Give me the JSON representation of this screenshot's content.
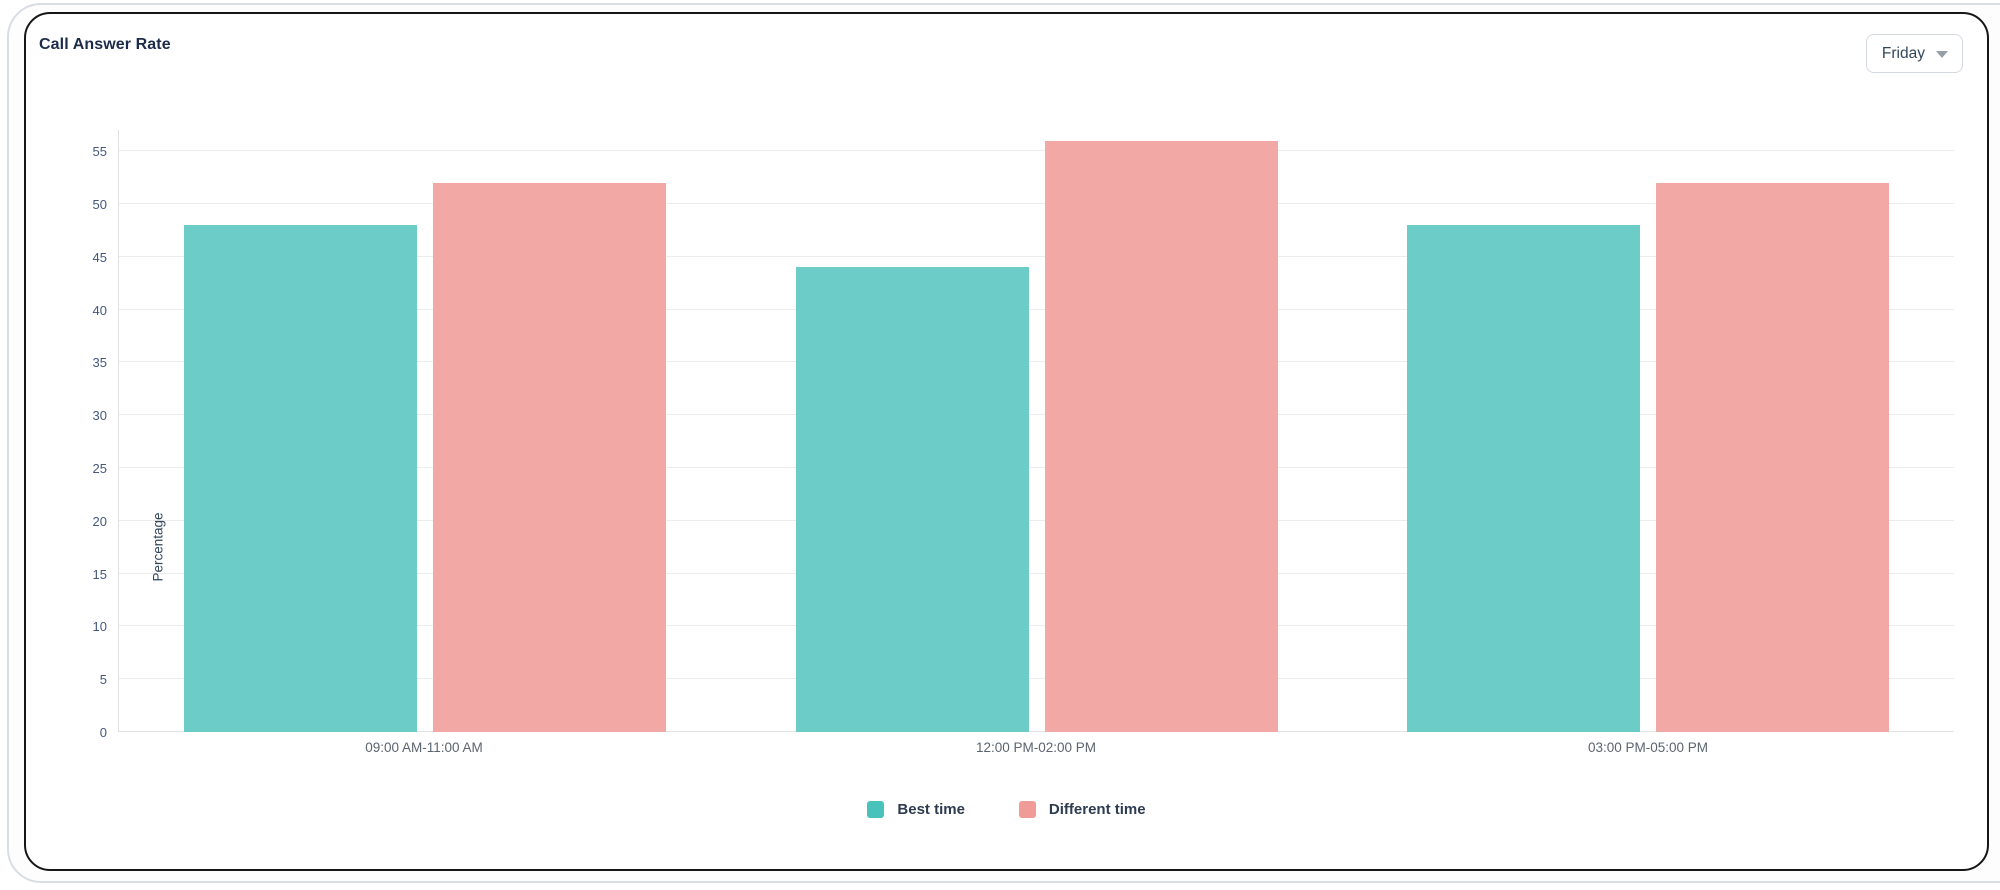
{
  "header": {
    "title": "Call Answer Rate",
    "day_selector": {
      "value": "Friday"
    }
  },
  "chart_data": {
    "type": "bar",
    "title": "Call Answer Rate",
    "categories": [
      "09:00 AM-11:00 AM",
      "12:00 PM-02:00 PM",
      "03:00 PM-05:00 PM"
    ],
    "series": [
      {
        "name": "Best time",
        "values": [
          48,
          44,
          48
        ],
        "color": "#6ccdc8",
        "legend_color": "#49c2bc"
      },
      {
        "name": "Different time",
        "values": [
          52,
          56,
          52
        ],
        "color": "#f2a9a5",
        "legend_color": "#f09b97"
      }
    ],
    "xlabel": "",
    "ylabel": "Percentage",
    "ylim": [
      0,
      57
    ],
    "yticks": [
      0,
      5,
      10,
      15,
      20,
      25,
      30,
      35,
      40,
      45,
      50,
      55
    ],
    "grid": true,
    "legend_position": "bottom"
  }
}
